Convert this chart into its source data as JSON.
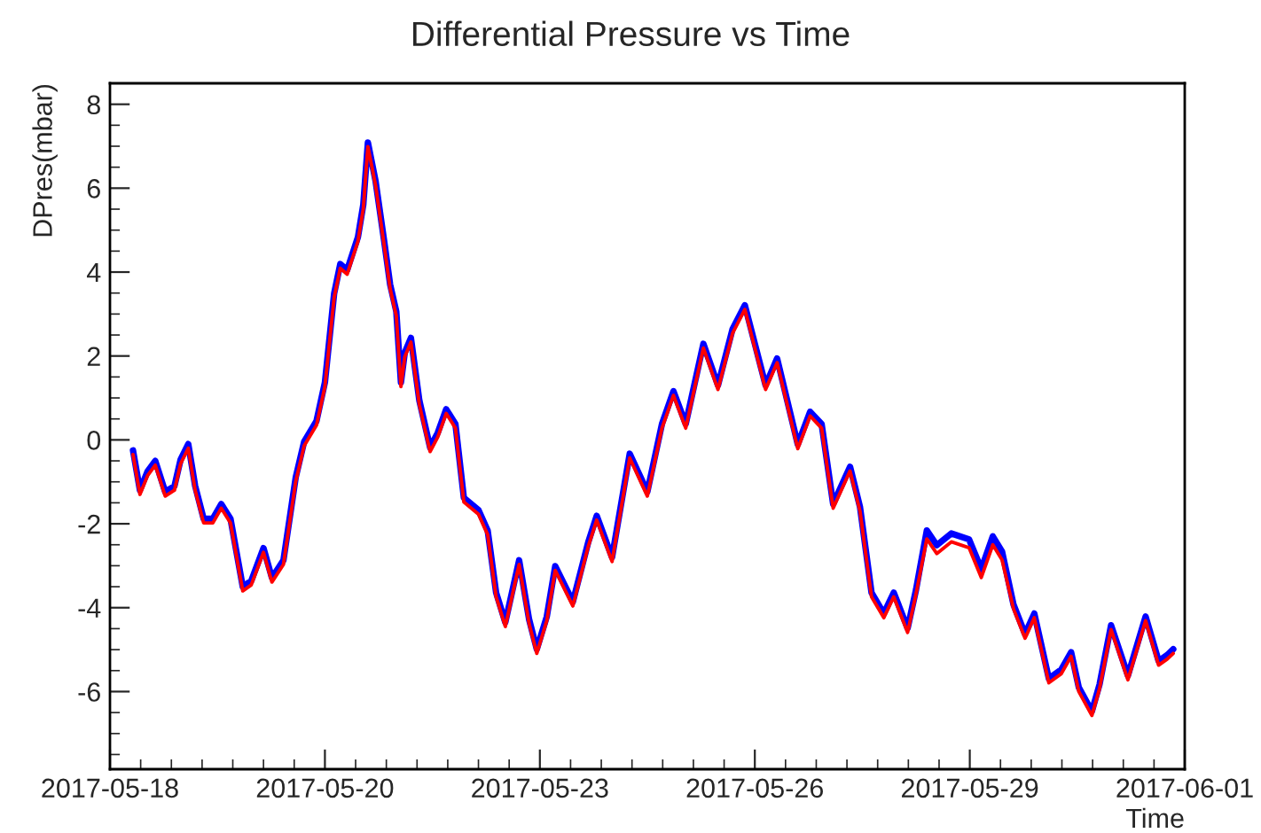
{
  "chart_data": {
    "type": "line",
    "title": "Differential Pressure vs Time",
    "xlabel": "Time",
    "ylabel": "DPres(mbar)",
    "x": [
      "2017-05-18T07:12",
      "2017-05-18T09:22",
      "2017-05-18T11:46",
      "2017-05-18T14:10",
      "2017-05-18T17:17",
      "2017-05-18T20:10",
      "2017-05-18T22:05",
      "2017-05-19T00:29",
      "2017-05-19T02:38",
      "2017-05-19T05:17",
      "2017-05-19T08:10",
      "2017-05-19T10:48",
      "2017-05-19T13:41",
      "2017-05-19T17:31",
      "2017-05-19T20:10",
      "2017-05-20T00:00",
      "2017-05-20T02:38",
      "2017-05-20T06:14",
      "2017-05-20T10:05",
      "2017-05-20T12:43",
      "2017-05-20T16:34",
      "2017-05-20T19:12",
      "2017-05-20T22:05",
      "2017-05-21T00:00",
      "2017-05-21T02:10",
      "2017-05-21T05:31",
      "2017-05-21T07:12",
      "2017-05-21T08:38",
      "2017-05-21T11:02",
      "2017-05-21T13:41",
      "2017-05-21T15:36",
      "2017-05-21T17:31",
      "2017-05-21T18:58",
      "2017-05-21T20:10",
      "2017-05-21T22:05",
      "2017-05-22T00:43",
      "2017-05-22T04:05",
      "2017-05-22T06:29",
      "2017-05-22T09:07",
      "2017-05-22T12:00",
      "2017-05-22T14:38",
      "2017-05-22T19:12",
      "2017-05-22T22:05",
      "2017-05-23T00:43",
      "2017-05-23T03:36",
      "2017-05-23T07:55",
      "2017-05-23T11:02",
      "2017-05-23T13:26",
      "2017-05-23T16:34",
      "2017-05-23T19:12",
      "2017-05-24T00:43",
      "2017-05-24T05:31",
      "2017-05-24T08:10",
      "2017-05-24T12:58",
      "2017-05-24T18:29",
      "2017-05-25T00:00",
      "2017-05-25T04:34",
      "2017-05-25T08:10",
      "2017-05-25T12:00",
      "2017-05-25T17:31",
      "2017-05-25T22:05",
      "2017-05-26T02:38",
      "2017-05-26T06:29",
      "2017-05-26T12:58",
      "2017-05-26T16:34",
      "2017-05-26T23:02",
      "2017-05-27T02:53",
      "2017-05-27T06:29",
      "2017-05-27T10:05",
      "2017-05-27T15:22",
      "2017-05-27T18:29",
      "2017-05-27T22:05",
      "2017-05-28T01:55",
      "2017-05-28T05:02",
      "2017-05-28T09:22",
      "2017-05-28T12:00",
      "2017-05-28T15:22",
      "2017-05-28T18:29",
      "2017-05-28T23:02",
      "2017-05-29T04:34",
      "2017-05-29T08:24",
      "2017-05-29T12:00",
      "2017-05-29T14:53",
      "2017-05-29T18:29",
      "2017-05-29T22:05",
      "2017-05-30T00:58",
      "2017-05-30T05:31",
      "2017-05-30T09:22",
      "2017-05-30T12:29",
      "2017-05-30T14:53",
      "2017-05-30T18:58",
      "2017-05-30T21:22",
      "2017-05-31T00:58",
      "2017-05-31T06:14",
      "2017-05-31T11:46",
      "2017-05-31T15:50",
      "2017-05-31T18:29",
      "2017-05-31T20:24"
    ],
    "series": [
      {
        "color": "#0000ff",
        "values": [
          -0.25,
          -1.2,
          -0.75,
          -0.5,
          -1.24,
          -1.1,
          -0.47,
          -0.1,
          -1.1,
          -1.88,
          -1.88,
          -1.53,
          -1.88,
          -3.5,
          -3.36,
          -2.58,
          -3.29,
          -2.87,
          -0.89,
          -0.04,
          0.45,
          1.37,
          3.49,
          4.19,
          4.05,
          4.83,
          5.61,
          7.09,
          6.17,
          4.76,
          3.7,
          3.06,
          1.37,
          2.08,
          2.43,
          0.94,
          -0.18,
          0.17,
          0.73,
          0.38,
          -1.38,
          -1.67,
          -2.16,
          -3.64,
          -4.35,
          -2.87,
          -4.28,
          -4.99,
          -4.21,
          -3.01,
          -3.86,
          -2.44,
          -1.81,
          -2.8,
          -0.33,
          -1.24,
          0.38,
          1.16,
          0.38,
          2.29,
          1.3,
          2.64,
          3.21,
          1.3,
          1.94,
          -0.11,
          0.67,
          0.38,
          -1.53,
          -0.64,
          -1.6,
          -3.64,
          -4.14,
          -3.64,
          -4.49,
          -3.57,
          -2.16,
          -2.51,
          -2.23,
          -2.37,
          -3.08,
          -2.3,
          -2.66,
          -3.93,
          -4.63,
          -4.14,
          -5.69,
          -5.48,
          -5.06,
          -5.9,
          -6.47,
          -5.83,
          -4.42,
          -5.62,
          -4.21,
          -5.27,
          -5.13,
          -4.99
        ]
      },
      {
        "color": "#ff0000",
        "values": [
          -0.35,
          -1.3,
          -0.85,
          -0.6,
          -1.34,
          -1.2,
          -0.57,
          -0.2,
          -1.2,
          -1.98,
          -1.98,
          -1.63,
          -1.98,
          -3.6,
          -3.46,
          -2.68,
          -3.39,
          -2.97,
          -0.99,
          -0.14,
          0.35,
          1.27,
          3.39,
          4.09,
          3.95,
          4.73,
          5.51,
          6.99,
          6.07,
          4.66,
          3.6,
          2.96,
          1.27,
          1.98,
          2.33,
          0.84,
          -0.28,
          0.07,
          0.63,
          0.28,
          -1.48,
          -1.77,
          -2.26,
          -3.74,
          -4.45,
          -2.97,
          -4.38,
          -5.09,
          -4.31,
          -3.11,
          -3.96,
          -2.54,
          -1.91,
          -2.9,
          -0.43,
          -1.34,
          0.28,
          1.06,
          0.28,
          2.19,
          1.2,
          2.54,
          3.11,
          1.2,
          1.84,
          -0.21,
          0.57,
          0.28,
          -1.63,
          -0.74,
          -1.7,
          -3.74,
          -4.24,
          -3.74,
          -4.59,
          -3.67,
          -2.36,
          -2.71,
          -2.43,
          -2.57,
          -3.28,
          -2.5,
          -2.86,
          -4.03,
          -4.73,
          -4.24,
          -5.79,
          -5.58,
          -5.16,
          -6.0,
          -6.57,
          -5.93,
          -4.52,
          -5.72,
          -4.31,
          -5.37,
          -5.23,
          -5.09
        ]
      }
    ],
    "xlim": [
      "2017-05-18T00:00",
      "2017-06-01T00:00"
    ],
    "xticks": [
      {
        "value": "2017-05-18T00:00",
        "label": "2017-05-18"
      },
      {
        "value": "2017-05-20T19:12",
        "label": "2017-05-20"
      },
      {
        "value": "2017-05-23T14:24",
        "label": "2017-05-23"
      },
      {
        "value": "2017-05-26T09:36",
        "label": "2017-05-26"
      },
      {
        "value": "2017-05-29T04:48",
        "label": "2017-05-29"
      },
      {
        "value": "2017-06-01T00:00",
        "label": "2017-06-01"
      }
    ],
    "ylim": [
      -7.85,
      8.5
    ],
    "yticks": [
      -6,
      -4,
      -2,
      0,
      2,
      4,
      6,
      8
    ],
    "grid": false
  }
}
